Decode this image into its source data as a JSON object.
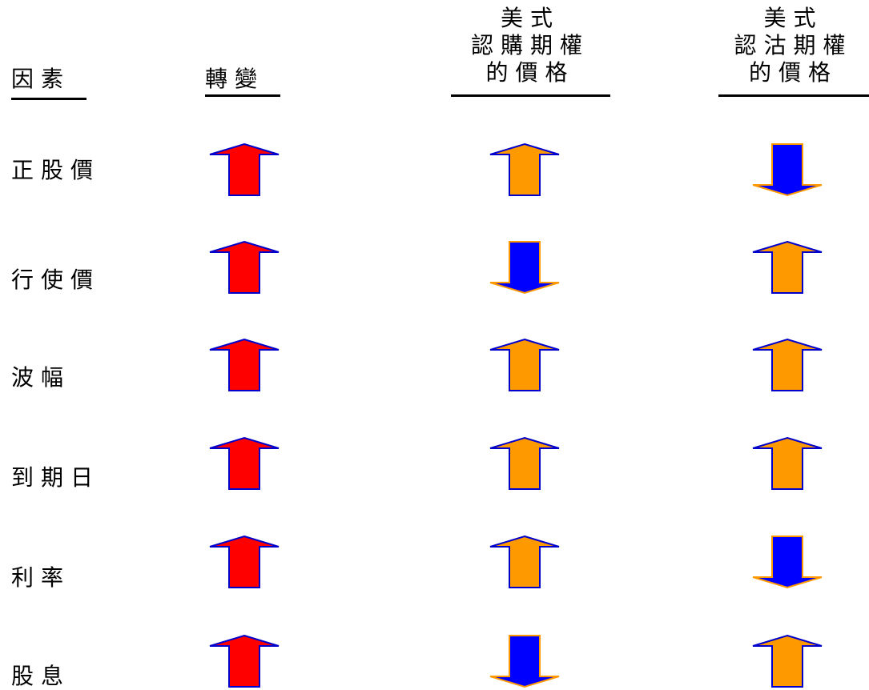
{
  "headers": {
    "factor": "因素",
    "change": "轉變",
    "call": [
      "美式",
      "認購期權",
      "的價格"
    ],
    "put": [
      "美式",
      "認沽期權",
      "的價格"
    ]
  },
  "colors": {
    "change_fill": "#ff0000",
    "change_stroke": "#0000cc",
    "orange": "#ff9900",
    "blue": "#0000ff"
  },
  "rows": [
    {
      "factor": "正股價",
      "change": "up",
      "call": "up",
      "put": "down"
    },
    {
      "factor": "行使價",
      "change": "up",
      "call": "down",
      "put": "up"
    },
    {
      "factor": "波幅",
      "change": "up",
      "call": "up",
      "put": "up"
    },
    {
      "factor": "到期日",
      "change": "up",
      "call": "up",
      "put": "up"
    },
    {
      "factor": "利率",
      "change": "up",
      "call": "up",
      "put": "down"
    },
    {
      "factor": "股息",
      "change": "up",
      "call": "down",
      "put": "up"
    }
  ]
}
